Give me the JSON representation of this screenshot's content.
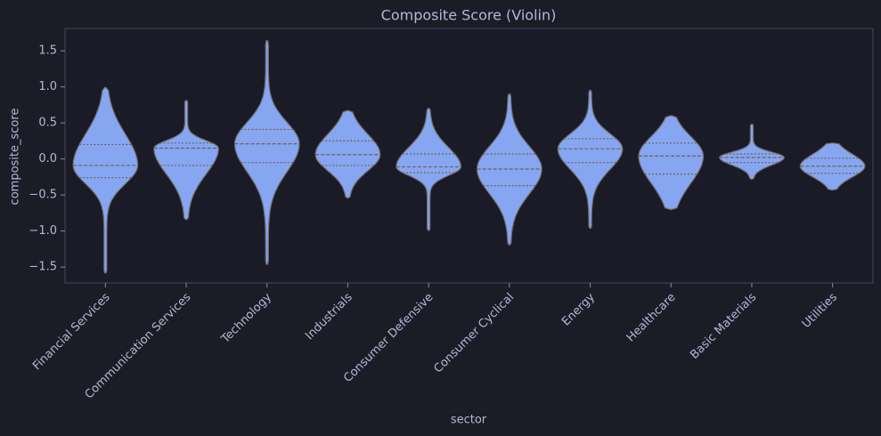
{
  "chart_data": {
    "type": "violin",
    "title": "Composite Score (Violin)",
    "x_label": "sector",
    "y_label": "composite_score",
    "categories": [
      "Financial Services",
      "Communication Services",
      "Technology",
      "Industrials",
      "Consumer Defensive",
      "Consumer Cyclical",
      "Energy",
      "Healthcare",
      "Basic Materials",
      "Utilities"
    ],
    "violins": [
      {
        "min": -1.58,
        "q1": -0.26,
        "median": -0.09,
        "q3": 0.2,
        "max": 0.99
      },
      {
        "min": -0.84,
        "q1": -0.09,
        "median": 0.15,
        "q3": 0.22,
        "max": 0.81
      },
      {
        "min": -1.46,
        "q1": -0.05,
        "median": 0.21,
        "q3": 0.41,
        "max": 1.64
      },
      {
        "min": -0.54,
        "q1": -0.09,
        "median": 0.06,
        "q3": 0.25,
        "max": 0.67
      },
      {
        "min": -0.99,
        "q1": -0.19,
        "median": -0.11,
        "q3": 0.07,
        "max": 0.7
      },
      {
        "min": -1.19,
        "q1": -0.37,
        "median": -0.14,
        "q3": 0.07,
        "max": 0.9
      },
      {
        "min": -0.96,
        "q1": -0.05,
        "median": 0.14,
        "q3": 0.28,
        "max": 0.95
      },
      {
        "min": -0.7,
        "q1": -0.21,
        "median": 0.04,
        "q3": 0.22,
        "max": 0.6
      },
      {
        "min": -0.28,
        "q1": -0.05,
        "median": 0.02,
        "q3": 0.07,
        "max": 0.48
      },
      {
        "min": -0.43,
        "q1": -0.2,
        "median": -0.1,
        "q3": 0.01,
        "max": 0.22
      }
    ],
    "color": "#87a6f2",
    "ylim": [
      -1.72,
      1.81
    ],
    "yticks": [
      {
        "value": -1.5,
        "label": "−1.5"
      },
      {
        "value": -1.0,
        "label": "−1.0"
      },
      {
        "value": -0.5,
        "label": "−0.5"
      },
      {
        "value": 0,
        "label": "0.0"
      },
      0.5,
      {
        "value": 1.0,
        "label": "1.0"
      },
      1.5
    ]
  }
}
